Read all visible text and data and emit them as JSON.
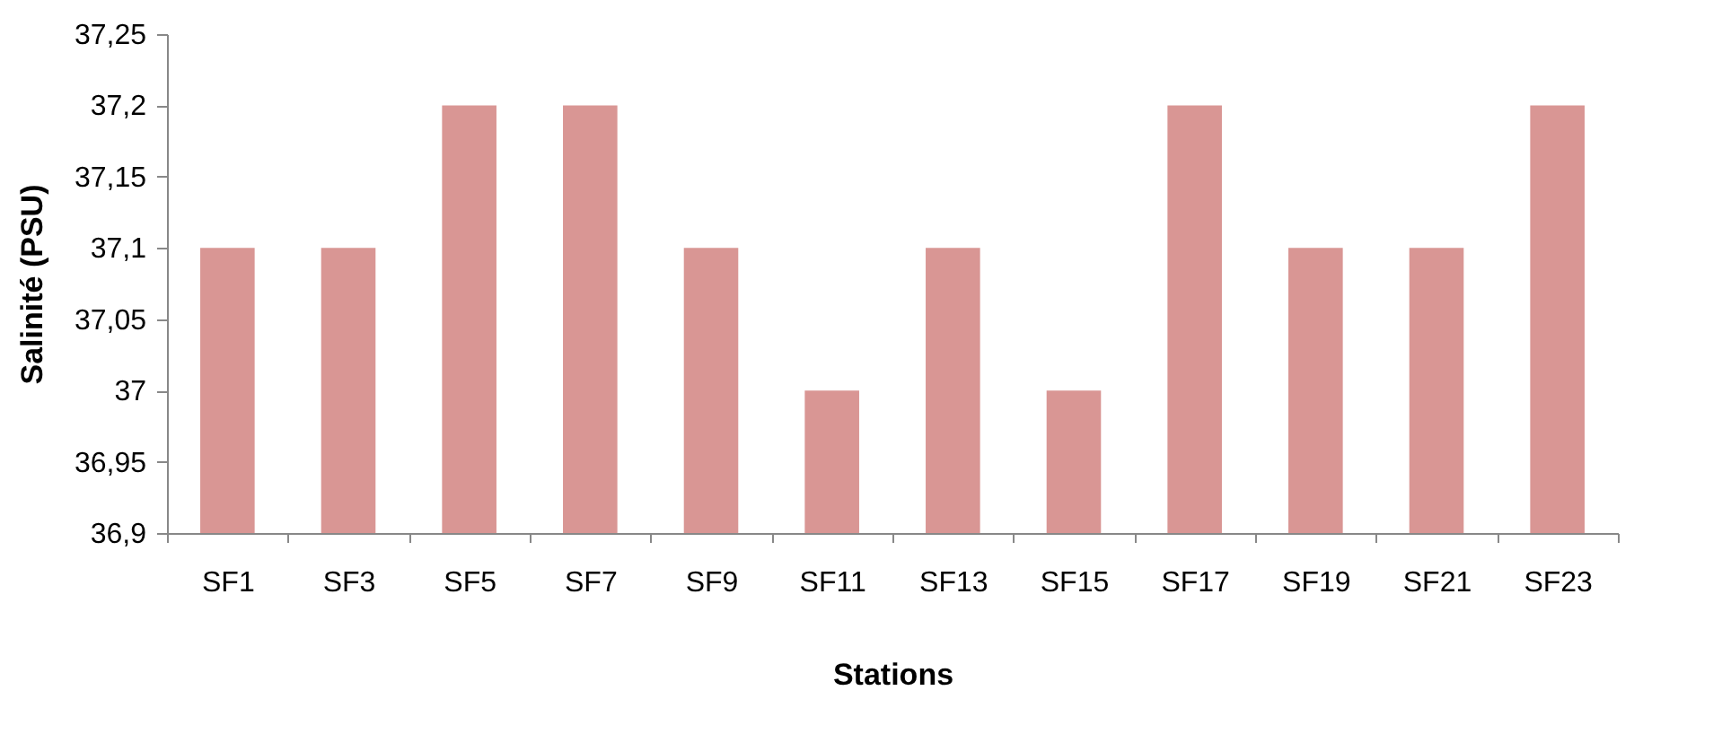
{
  "chart_data": {
    "type": "bar",
    "xlabel": "Stations",
    "ylabel": "Salinité (PSU)",
    "categories": [
      "SF1",
      "SF3",
      "SF5",
      "SF7",
      "SF9",
      "SF11",
      "SF13",
      "SF15",
      "SF17",
      "SF19",
      "SF21",
      "SF23"
    ],
    "values": [
      37.1,
      37.1,
      37.2,
      37.2,
      37.1,
      37.0,
      37.1,
      37.0,
      37.2,
      37.1,
      37.1,
      37.2
    ],
    "color": "#d99694",
    "ylim": [
      36.9,
      37.25
    ],
    "yticks": [
      {
        "value": 36.9,
        "label": "36,9"
      },
      {
        "value": 36.95,
        "label": "36,95"
      },
      {
        "value": 37,
        "label": "37"
      },
      {
        "value": 37.05,
        "label": "37,05"
      },
      {
        "value": 37.1,
        "label": "37,1"
      },
      {
        "value": 37.15,
        "label": "37,15"
      },
      {
        "value": 37.2,
        "label": "37,2"
      },
      {
        "value": 37.25,
        "label": "37,25"
      }
    ],
    "grid": false
  }
}
